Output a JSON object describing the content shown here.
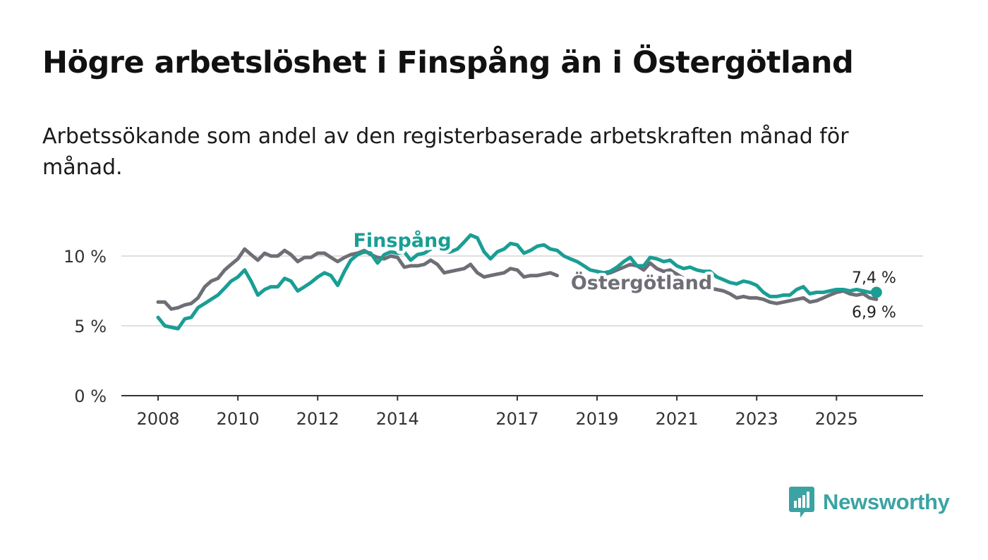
{
  "title": "Högre arbetslöshet i Finspång än i Östergötland",
  "subtitle": "Arbetssökande som andel av den registerbaserade arbetskraften månad för månad.",
  "brand": {
    "name": "Newsworthy",
    "color": "#3ba3a3",
    "icon": "newsworthy-bar-chart-icon"
  },
  "chart_data": {
    "type": "line",
    "title": "Högre arbetslöshet i Finspång än i Östergötland",
    "xlabel": "",
    "ylabel": "",
    "x_range": [
      2008.0,
      2026.25
    ],
    "ylim": [
      0,
      12
    ],
    "y_ticks": [
      {
        "value": 0,
        "label": "0 %"
      },
      {
        "value": 5,
        "label": "5 %"
      },
      {
        "value": 10,
        "label": "10 %"
      }
    ],
    "x_ticks": [
      {
        "value": 2008,
        "label": "2008"
      },
      {
        "value": 2010,
        "label": "2010"
      },
      {
        "value": 2012,
        "label": "2012"
      },
      {
        "value": 2014,
        "label": "2014"
      },
      {
        "value": 2017,
        "label": "2017"
      },
      {
        "value": 2019,
        "label": "2019"
      },
      {
        "value": 2021,
        "label": "2021"
      },
      {
        "value": 2023,
        "label": "2023"
      },
      {
        "value": 2025,
        "label": "2025"
      }
    ],
    "grid": "horizontal",
    "series": [
      {
        "name": "Östergötland",
        "color": "#6e6e76",
        "end_label": "6,9 %",
        "points": [
          [
            2008.0,
            6.7
          ],
          [
            2008.17,
            6.7
          ],
          [
            2008.33,
            6.2
          ],
          [
            2008.5,
            6.3
          ],
          [
            2008.67,
            6.5
          ],
          [
            2008.83,
            6.6
          ],
          [
            2009.0,
            7.0
          ],
          [
            2009.17,
            7.8
          ],
          [
            2009.33,
            8.2
          ],
          [
            2009.5,
            8.4
          ],
          [
            2009.67,
            9.0
          ],
          [
            2009.83,
            9.4
          ],
          [
            2010.0,
            9.8
          ],
          [
            2010.17,
            10.5
          ],
          [
            2010.33,
            10.1
          ],
          [
            2010.5,
            9.7
          ],
          [
            2010.67,
            10.2
          ],
          [
            2010.83,
            10.0
          ],
          [
            2011.0,
            10.0
          ],
          [
            2011.17,
            10.4
          ],
          [
            2011.33,
            10.1
          ],
          [
            2011.5,
            9.6
          ],
          [
            2011.67,
            9.9
          ],
          [
            2011.83,
            9.9
          ],
          [
            2012.0,
            10.2
          ],
          [
            2012.17,
            10.2
          ],
          [
            2012.33,
            9.9
          ],
          [
            2012.5,
            9.6
          ],
          [
            2012.67,
            9.9
          ],
          [
            2012.83,
            10.1
          ],
          [
            2013.0,
            10.2
          ],
          [
            2013.17,
            10.4
          ],
          [
            2013.33,
            10.1
          ],
          [
            2013.5,
            9.9
          ],
          [
            2013.67,
            9.8
          ],
          [
            2013.83,
            10.0
          ],
          [
            2014.0,
            9.9
          ],
          [
            2014.17,
            9.2
          ],
          [
            2014.33,
            9.3
          ],
          [
            2014.5,
            9.3
          ],
          [
            2014.67,
            9.4
          ],
          [
            2014.83,
            9.7
          ],
          [
            2015.0,
            9.4
          ],
          [
            2015.17,
            8.8
          ],
          [
            2015.33,
            8.9
          ],
          [
            2015.5,
            9.0
          ],
          [
            2015.67,
            9.1
          ],
          [
            2015.83,
            9.4
          ],
          [
            2016.0,
            8.8
          ],
          [
            2016.17,
            8.5
          ],
          [
            2016.33,
            8.6
          ],
          [
            2016.5,
            8.7
          ],
          [
            2016.67,
            8.8
          ],
          [
            2016.83,
            9.1
          ],
          [
            2017.0,
            9.0
          ],
          [
            2017.17,
            8.5
          ],
          [
            2017.33,
            8.6
          ],
          [
            2017.5,
            8.6
          ],
          [
            2017.67,
            8.7
          ],
          [
            2017.83,
            8.8
          ],
          [
            2018.0,
            8.6
          ]
        ]
      },
      {
        "name": "Östergötland (forts.)",
        "color": "#6e6e76",
        "label_hidden": true,
        "points": [
          [
            2019.0,
            8.9
          ],
          [
            2019.17,
            8.7
          ],
          [
            2019.33,
            8.8
          ],
          [
            2019.5,
            9.0
          ],
          [
            2019.67,
            9.2
          ],
          [
            2019.83,
            9.4
          ],
          [
            2020.0,
            9.3
          ],
          [
            2020.17,
            9.0
          ],
          [
            2020.33,
            9.5
          ],
          [
            2020.5,
            9.1
          ],
          [
            2020.67,
            8.9
          ],
          [
            2020.83,
            9.0
          ],
          [
            2021.0,
            8.7
          ],
          [
            2021.17,
            8.4
          ],
          [
            2021.33,
            8.2
          ],
          [
            2021.5,
            8.0
          ],
          [
            2021.67,
            7.8
          ],
          [
            2021.83,
            7.7
          ],
          [
            2022.0,
            7.6
          ],
          [
            2022.17,
            7.5
          ],
          [
            2022.33,
            7.3
          ],
          [
            2022.5,
            7.0
          ],
          [
            2022.67,
            7.1
          ],
          [
            2022.83,
            7.0
          ],
          [
            2023.0,
            7.0
          ],
          [
            2023.17,
            6.9
          ],
          [
            2023.33,
            6.7
          ],
          [
            2023.5,
            6.6
          ],
          [
            2023.67,
            6.7
          ],
          [
            2023.83,
            6.8
          ],
          [
            2024.0,
            6.9
          ],
          [
            2024.17,
            7.0
          ],
          [
            2024.33,
            6.7
          ],
          [
            2024.5,
            6.8
          ],
          [
            2024.67,
            7.0
          ],
          [
            2024.83,
            7.2
          ],
          [
            2025.0,
            7.4
          ],
          [
            2025.17,
            7.5
          ],
          [
            2025.33,
            7.3
          ],
          [
            2025.5,
            7.2
          ],
          [
            2025.67,
            7.3
          ],
          [
            2025.83,
            7.0
          ],
          [
            2026.0,
            6.9
          ]
        ]
      },
      {
        "name": "Finspång",
        "color": "#1a9e94",
        "end_label": "7,4 %",
        "points": [
          [
            2008.0,
            5.6
          ],
          [
            2008.17,
            5.0
          ],
          [
            2008.33,
            4.9
          ],
          [
            2008.5,
            4.8
          ],
          [
            2008.67,
            5.5
          ],
          [
            2008.83,
            5.6
          ],
          [
            2009.0,
            6.3
          ],
          [
            2009.17,
            6.6
          ],
          [
            2009.33,
            6.9
          ],
          [
            2009.5,
            7.2
          ],
          [
            2009.67,
            7.7
          ],
          [
            2009.83,
            8.2
          ],
          [
            2010.0,
            8.5
          ],
          [
            2010.17,
            9.0
          ],
          [
            2010.33,
            8.2
          ],
          [
            2010.5,
            7.2
          ],
          [
            2010.67,
            7.6
          ],
          [
            2010.83,
            7.8
          ],
          [
            2011.0,
            7.8
          ],
          [
            2011.17,
            8.4
          ],
          [
            2011.33,
            8.2
          ],
          [
            2011.5,
            7.5
          ],
          [
            2011.67,
            7.8
          ],
          [
            2011.83,
            8.1
          ],
          [
            2012.0,
            8.5
          ],
          [
            2012.17,
            8.8
          ],
          [
            2012.33,
            8.6
          ],
          [
            2012.5,
            7.9
          ],
          [
            2012.67,
            8.9
          ],
          [
            2012.83,
            9.7
          ],
          [
            2013.0,
            10.1
          ],
          [
            2013.17,
            10.3
          ],
          [
            2013.33,
            10.2
          ],
          [
            2013.5,
            9.5
          ],
          [
            2013.67,
            10.1
          ],
          [
            2013.83,
            10.3
          ],
          [
            2014.0,
            10.2
          ],
          [
            2014.17,
            10.3
          ],
          [
            2014.33,
            9.7
          ],
          [
            2014.5,
            10.1
          ],
          [
            2014.67,
            10.2
          ],
          [
            2014.83,
            10.5
          ],
          [
            2015.0,
            10.7
          ],
          [
            2015.17,
            10.3
          ],
          [
            2015.33,
            10.3
          ],
          [
            2015.5,
            10.5
          ],
          [
            2015.67,
            11.0
          ],
          [
            2015.83,
            11.5
          ],
          [
            2016.0,
            11.3
          ],
          [
            2016.17,
            10.3
          ],
          [
            2016.33,
            9.8
          ],
          [
            2016.5,
            10.3
          ],
          [
            2016.67,
            10.5
          ],
          [
            2016.83,
            10.9
          ],
          [
            2017.0,
            10.8
          ],
          [
            2017.17,
            10.2
          ],
          [
            2017.33,
            10.4
          ],
          [
            2017.5,
            10.7
          ],
          [
            2017.67,
            10.8
          ],
          [
            2017.83,
            10.5
          ],
          [
            2018.0,
            10.4
          ],
          [
            2018.17,
            10.0
          ],
          [
            2018.33,
            9.8
          ],
          [
            2018.5,
            9.6
          ],
          [
            2018.67,
            9.3
          ],
          [
            2018.83,
            9.0
          ],
          [
            2019.0,
            8.9
          ],
          [
            2019.17,
            8.8
          ],
          [
            2019.33,
            8.9
          ],
          [
            2019.5,
            9.2
          ],
          [
            2019.67,
            9.6
          ],
          [
            2019.83,
            9.9
          ],
          [
            2020.0,
            9.3
          ],
          [
            2020.17,
            9.3
          ],
          [
            2020.33,
            9.9
          ],
          [
            2020.5,
            9.8
          ],
          [
            2020.67,
            9.6
          ],
          [
            2020.83,
            9.7
          ],
          [
            2021.0,
            9.3
          ],
          [
            2021.17,
            9.1
          ],
          [
            2021.33,
            9.2
          ],
          [
            2021.5,
            9.0
          ],
          [
            2021.67,
            8.9
          ],
          [
            2021.83,
            8.9
          ],
          [
            2022.0,
            8.5
          ],
          [
            2022.17,
            8.3
          ],
          [
            2022.33,
            8.1
          ],
          [
            2022.5,
            8.0
          ],
          [
            2022.67,
            8.2
          ],
          [
            2022.83,
            8.1
          ],
          [
            2023.0,
            7.9
          ],
          [
            2023.17,
            7.4
          ],
          [
            2023.33,
            7.1
          ],
          [
            2023.5,
            7.1
          ],
          [
            2023.67,
            7.2
          ],
          [
            2023.83,
            7.2
          ],
          [
            2024.0,
            7.6
          ],
          [
            2024.17,
            7.8
          ],
          [
            2024.33,
            7.3
          ],
          [
            2024.5,
            7.4
          ],
          [
            2024.67,
            7.4
          ],
          [
            2024.83,
            7.5
          ],
          [
            2025.0,
            7.6
          ],
          [
            2025.17,
            7.6
          ],
          [
            2025.33,
            7.5
          ],
          [
            2025.5,
            7.6
          ],
          [
            2025.67,
            7.5
          ],
          [
            2025.83,
            7.4
          ],
          [
            2026.0,
            7.4
          ]
        ]
      }
    ],
    "annotations": [
      {
        "text": "Finspång",
        "series": "Finspång",
        "at_x": 2013.8
      },
      {
        "text": "Östergötland",
        "series": "Östergötland",
        "at_x": 2019.0
      }
    ]
  }
}
